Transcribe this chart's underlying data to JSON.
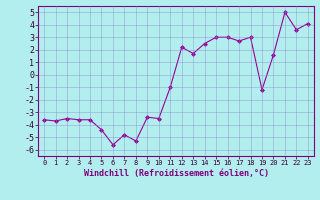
{
  "x": [
    0,
    1,
    2,
    3,
    4,
    5,
    6,
    7,
    8,
    9,
    10,
    11,
    12,
    13,
    14,
    15,
    16,
    17,
    18,
    19,
    20,
    21,
    22,
    23
  ],
  "y": [
    -3.6,
    -3.7,
    -3.5,
    -3.6,
    -3.6,
    -4.4,
    -5.6,
    -4.8,
    -5.3,
    -3.4,
    -3.5,
    -1.0,
    2.2,
    1.7,
    2.5,
    3.0,
    3.0,
    2.7,
    3.0,
    -1.2,
    1.6,
    5.0,
    3.6,
    4.1
  ],
  "line_color": "#990099",
  "marker": "D",
  "marker_size": 2,
  "bg_color": "#b3eeee",
  "grid_color": "#8888cc",
  "xlabel": "Windchill (Refroidissement éolien,°C)",
  "xlim": [
    -0.5,
    23.5
  ],
  "ylim": [
    -6.5,
    5.5
  ],
  "xtick_labels": [
    "0",
    "1",
    "2",
    "3",
    "4",
    "5",
    "6",
    "7",
    "8",
    "9",
    "10",
    "11",
    "12",
    "13",
    "14",
    "15",
    "16",
    "17",
    "18",
    "19",
    "20",
    "21",
    "22",
    "23"
  ],
  "yticks": [
    -6,
    -5,
    -4,
    -3,
    -2,
    -1,
    0,
    1,
    2,
    3,
    4,
    5
  ],
  "xlabel_color": "#800080",
  "spine_color": "#800080",
  "axis_bg": "#b3eeee"
}
